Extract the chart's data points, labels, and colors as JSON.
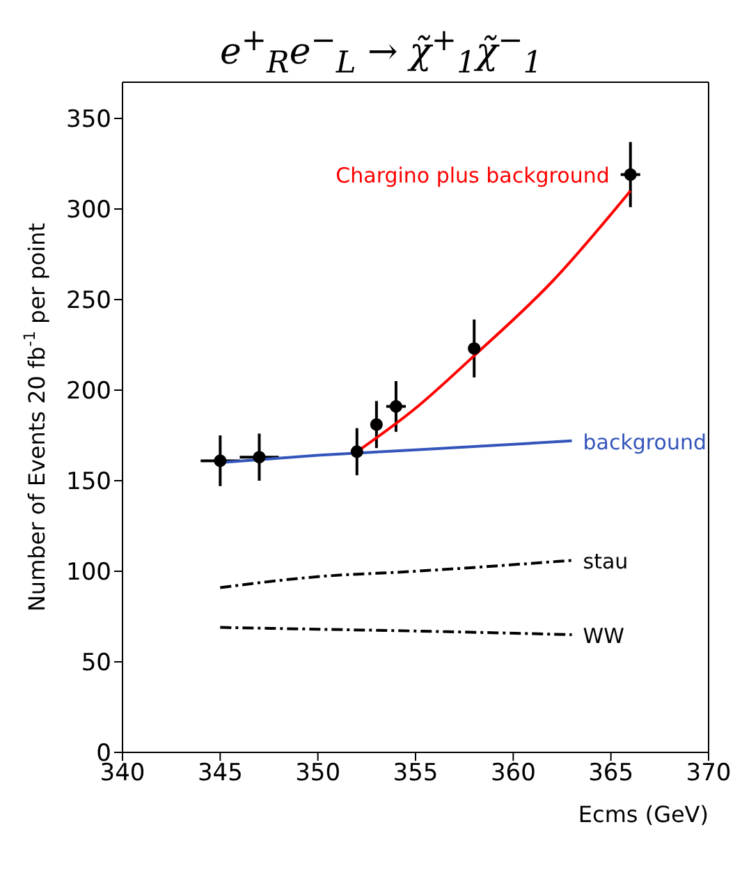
{
  "chart_data": {
    "type": "line",
    "title": "e$^{+}$$_{R}$e$^{−}$$_{L}$ → χ̃$^{+}$$_{1}$χ̃$^{−}$$_{1}$",
    "xlabel": "Ecms (GeV)",
    "ylabel": "Number of Events  20 fb$^{-1}$ per point",
    "xlim": [
      340,
      370
    ],
    "xticks": [
      340,
      345,
      350,
      355,
      360,
      365,
      370
    ],
    "ylim": [
      0,
      370
    ],
    "yticks": [
      0,
      50,
      100,
      150,
      200,
      250,
      300,
      350
    ],
    "series": [
      {
        "type": "scatter",
        "color": "#000000",
        "marker": "circle",
        "x": [
          345,
          347,
          352,
          353,
          354,
          358,
          366
        ],
        "values": [
          161,
          163,
          166,
          181,
          191,
          223,
          319
        ],
        "errors": [
          14,
          13,
          13,
          13,
          14,
          16,
          18
        ],
        "xerrors": [
          1,
          1,
          null,
          null,
          0.5,
          null,
          0.5
        ]
      },
      {
        "name": "Chargino plus background",
        "color": "#ff0000",
        "line_style": "solid",
        "x": [
          352,
          355,
          358,
          362,
          366
        ],
        "values": [
          166,
          190,
          219,
          260,
          310
        ]
      },
      {
        "name": "background",
        "color": "#3355bb",
        "line_style": "solid",
        "x": [
          345,
          350,
          355,
          363
        ],
        "values": [
          160,
          164,
          167,
          172
        ]
      },
      {
        "name": "stau",
        "color": "#000000",
        "line_style": "dashed",
        "x": [
          345,
          350,
          355,
          363
        ],
        "values": [
          91,
          97,
          100,
          106
        ]
      },
      {
        "name": "WW",
        "color": "#000000",
        "line_style": "dashed",
        "x": [
          345,
          350,
          355,
          363
        ],
        "values": [
          69,
          68,
          67,
          65
        ]
      }
    ]
  }
}
